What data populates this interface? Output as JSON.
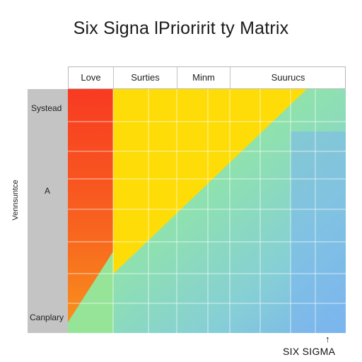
{
  "title": "Six Signa lPrioririt ty Matrix",
  "columns": [
    "Love",
    "Surties",
    "Minm",
    "Suurucs"
  ],
  "rows": {
    "top": "Systead",
    "middle": "A",
    "bottom": "Canplary"
  },
  "y_axis_label": "Vennsuntce",
  "footer": "SIX SIGMA",
  "colors": {
    "red": "#f83a22",
    "orange": "#f8781e",
    "yellow": "#fddc08",
    "green": "#93e49f",
    "teal": "#8ad8c8",
    "blue": "#7eb8ee",
    "strip": "#c4c4c4"
  }
}
